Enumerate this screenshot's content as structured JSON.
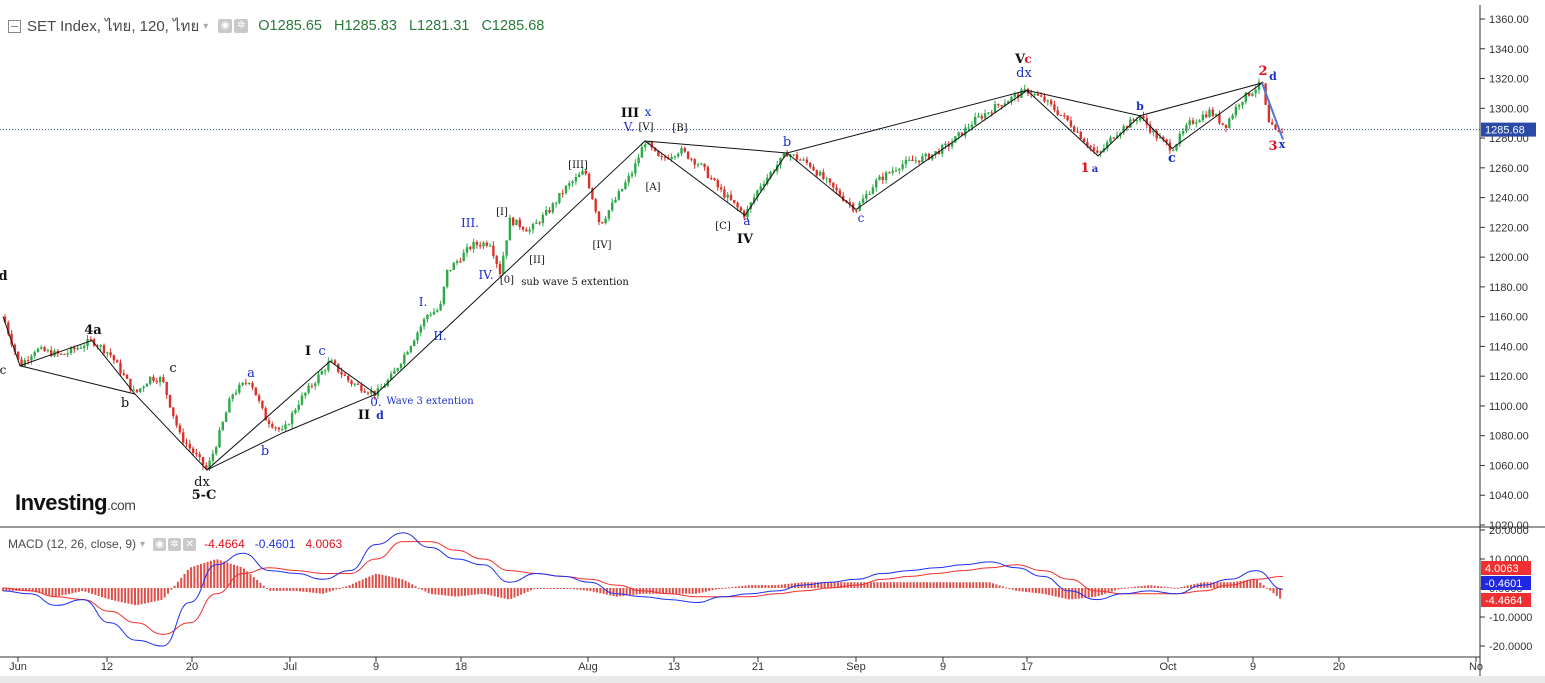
{
  "header": {
    "symbol": "SET Index, ไทย, 120, ไทย",
    "open_label": "O1285.65",
    "high_label": "H1285.83",
    "low_label": "L1281.31",
    "close_label": "C1285.68"
  },
  "macd_header": {
    "title": "MACD (12, 26, close, 9)",
    "hist": "-4.4664",
    "macd": "-0.4601",
    "signal": "4.0063"
  },
  "logo": {
    "main": "Investing",
    "suffix": ".com"
  },
  "colors": {
    "up": "#2ea84a",
    "down": "#d8332b",
    "wave_blue": "#1a2ec8",
    "wave_red": "#e0101e",
    "macd_line": "#2030f0",
    "signal_line": "#f03030",
    "current": "#2a4aa8"
  },
  "chart_data": [
    {
      "type": "candlestick",
      "title": "SET Index, ไทย, 120, ไทย",
      "y_axis_ticks": [
        "1360.00",
        "1340.00",
        "1320.00",
        "1300.00",
        "1280.00",
        "1260.00",
        "1240.00",
        "1220.00",
        "1200.00",
        "1180.00",
        "1160.00",
        "1140.00",
        "1120.00",
        "1100.00",
        "1080.00",
        "1060.00",
        "1040.00",
        "1020.00"
      ],
      "ylim": [
        1020,
        1360
      ],
      "x_axis_ticks": [
        "Jun",
        "12",
        "20",
        "Jul",
        "9",
        "18",
        "Aug",
        "13",
        "21",
        "Sep",
        "9",
        "17",
        "Oct",
        "9",
        "20",
        "No"
      ],
      "current_price": "1285.68",
      "ohlc_last": {
        "open": 1285.65,
        "high": 1285.83,
        "low": 1281.31,
        "close": 1285.68
      },
      "price_path": [
        {
          "x": "Jun",
          "y": 1160
        },
        {
          "x": "Jun",
          "y": 1127
        },
        {
          "x": "Jun 12",
          "y": 1144
        },
        {
          "x": "Jun 15",
          "y": 1108
        },
        {
          "x": "Jun 20",
          "y": 1057
        },
        {
          "x": "Jun 26",
          "y": 1118
        },
        {
          "x": "Jun 29",
          "y": 1082
        },
        {
          "x": "Jul 5",
          "y": 1130
        },
        {
          "x": "Jul 9",
          "y": 1108
        },
        {
          "x": "Jul 12",
          "y": 1130
        },
        {
          "x": "Jul 17",
          "y": 1172
        },
        {
          "x": "Jul 20",
          "y": 1210
        },
        {
          "x": "Jul 24",
          "y": 1220
        },
        {
          "x": "Jul 31",
          "y": 1245
        },
        {
          "x": "Aug 9",
          "y": 1278
        },
        {
          "x": "Aug 13",
          "y": 1272
        },
        {
          "x": "Aug 20",
          "y": 1228
        },
        {
          "x": "Aug 24",
          "y": 1270
        },
        {
          "x": "Aug 31",
          "y": 1232
        },
        {
          "x": "Sep 9",
          "y": 1275
        },
        {
          "x": "Sep 17",
          "y": 1312
        },
        {
          "x": "Sep 24",
          "y": 1268
        },
        {
          "x": "Sep 28",
          "y": 1295
        },
        {
          "x": "Oct 2",
          "y": 1273
        },
        {
          "x": "Oct 9",
          "y": 1317
        },
        {
          "x": "Oct 11",
          "y": 1285.68
        }
      ],
      "wave_labels": [
        {
          "text": "d",
          "color": "black"
        },
        {
          "text": "c",
          "color": "black"
        },
        {
          "text": "4a",
          "color": "black"
        },
        {
          "text": "b",
          "color": "black"
        },
        {
          "text": "c",
          "color": "black"
        },
        {
          "text": "dx",
          "color": "black"
        },
        {
          "text": "5-C",
          "color": "black"
        },
        {
          "text": "a",
          "color": "blue"
        },
        {
          "text": "b",
          "color": "blue"
        },
        {
          "text": "I",
          "color": "black"
        },
        {
          "text": "c",
          "color": "blue"
        },
        {
          "text": "0.",
          "color": "blue"
        },
        {
          "text": "Wave 3 extention",
          "color": "blue"
        },
        {
          "text": "II",
          "color": "black"
        },
        {
          "text": "d",
          "color": "blue"
        },
        {
          "text": "I.",
          "color": "blue"
        },
        {
          "text": "II.",
          "color": "blue"
        },
        {
          "text": "III.",
          "color": "blue"
        },
        {
          "text": "IV.",
          "color": "blue"
        },
        {
          "text": "[0]",
          "color": "black"
        },
        {
          "text": "sub wave 5 extention",
          "color": "black"
        },
        {
          "text": "[I]",
          "color": "black"
        },
        {
          "text": "[II]",
          "color": "black"
        },
        {
          "text": "[III]",
          "color": "black"
        },
        {
          "text": "[IV]",
          "color": "black"
        },
        {
          "text": "III",
          "color": "black"
        },
        {
          "text": "x",
          "color": "blue"
        },
        {
          "text": "V.",
          "color": "blue"
        },
        {
          "text": "[V]",
          "color": "black"
        },
        {
          "text": "[B]",
          "color": "black"
        },
        {
          "text": "[A]",
          "color": "black"
        },
        {
          "text": "[C]",
          "color": "black"
        },
        {
          "text": "a",
          "color": "blue"
        },
        {
          "text": "IV",
          "color": "black"
        },
        {
          "text": "b",
          "color": "blue"
        },
        {
          "text": "c",
          "color": "blue"
        },
        {
          "text": "V",
          "color": "black"
        },
        {
          "text": "c",
          "color": "red"
        },
        {
          "text": "dx",
          "color": "blue"
        },
        {
          "text": "1",
          "color": "red"
        },
        {
          "text": "a",
          "color": "blue"
        },
        {
          "text": "b",
          "color": "blue"
        },
        {
          "text": "c",
          "color": "blue"
        },
        {
          "text": "2",
          "color": "red"
        },
        {
          "text": "d",
          "color": "blue"
        },
        {
          "text": "3",
          "color": "red"
        },
        {
          "text": "x",
          "color": "blue"
        }
      ]
    },
    {
      "type": "line",
      "title": "MACD (12, 26, close, 9)",
      "y_axis_ticks": [
        "20.0000",
        "10.0000",
        "0.0000",
        "-10.0000",
        "-20.0000"
      ],
      "ylim": [
        -22,
        20
      ],
      "series": [
        {
          "name": "MACD",
          "values": [
            -1,
            -2,
            -6,
            -4,
            -12,
            -18,
            -20,
            -5,
            8,
            12,
            6,
            5,
            3,
            6,
            15,
            19,
            14,
            10,
            8,
            2,
            5,
            4,
            2,
            -2,
            -3,
            -4,
            -5,
            -3,
            -2,
            -1,
            1,
            2,
            3,
            5,
            6,
            7,
            8,
            9,
            7,
            4,
            -1,
            -4,
            -2,
            -1,
            -2,
            1,
            3,
            6,
            -0.4601
          ]
        },
        {
          "name": "Signal",
          "values": [
            0,
            -1,
            -3,
            -4,
            -8,
            -12,
            -16,
            -12,
            -2,
            5,
            7,
            6,
            5,
            5,
            10,
            16,
            16,
            13,
            10,
            6,
            5,
            4,
            3,
            1,
            -1,
            -2,
            -3,
            -3,
            -3,
            -2,
            -1,
            0,
            1,
            3,
            4,
            5,
            6,
            7,
            8,
            6,
            3,
            -1,
            -2,
            -2,
            -2,
            -1,
            1,
            3,
            4.0063
          ]
        },
        {
          "name": "Histogram",
          "values": [
            -1,
            -1,
            -3,
            -1,
            -4,
            -6,
            -4,
            7,
            10,
            7,
            -1,
            -1,
            -2,
            1,
            5,
            3,
            -2,
            -3,
            -2,
            -4,
            0,
            0,
            -1,
            -3,
            -2,
            -2,
            -2,
            0,
            1,
            1,
            2,
            2,
            2,
            2,
            2,
            2,
            2,
            2,
            -1,
            -2,
            -4,
            -3,
            0,
            1,
            0,
            2,
            2,
            3,
            -4.4664
          ]
        }
      ],
      "value_labels": [
        "4.0063",
        "-0.4601",
        "-4.4664"
      ]
    }
  ]
}
